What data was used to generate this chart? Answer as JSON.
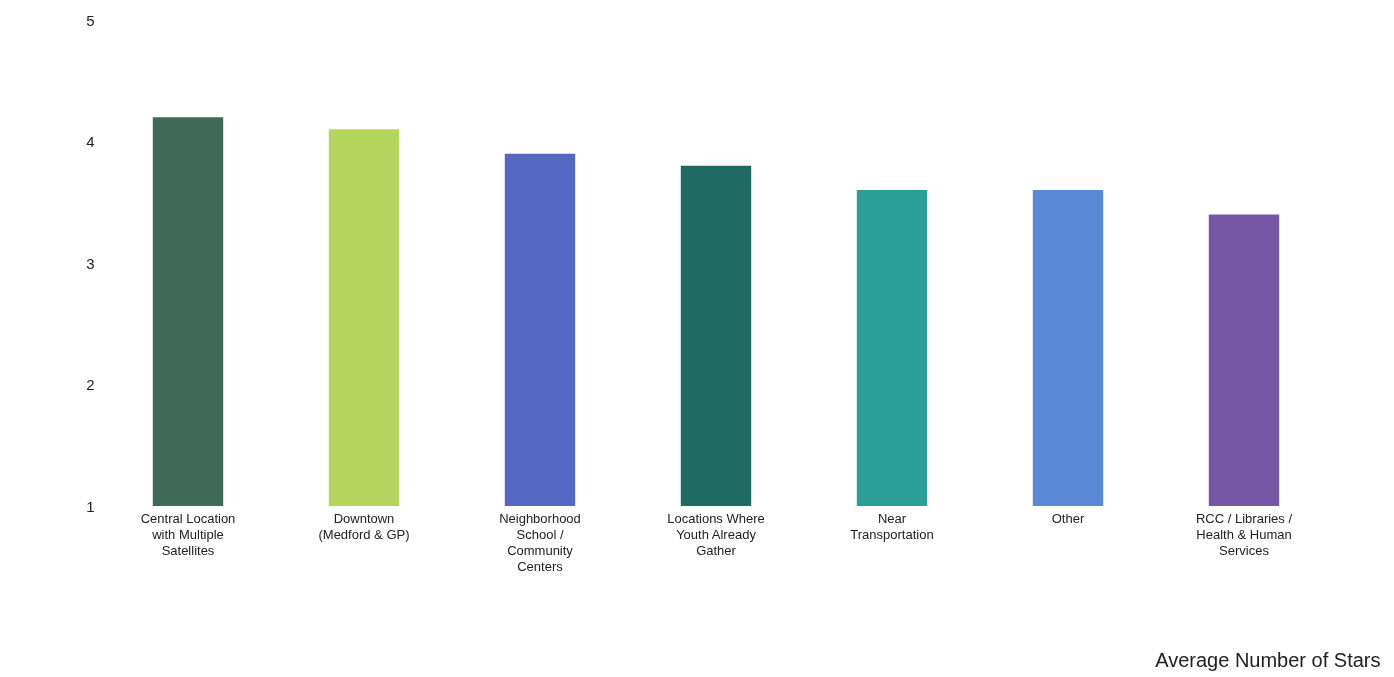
{
  "chart_data": {
    "type": "bar",
    "categories": [
      "Central Location with Multiple Satellites",
      "Downtown (Medford & GP)",
      "Neighborhood School / Community Centers",
      "Locations Where Youth Already Gather",
      "Near Transportation",
      "Other",
      "RCC / Libraries / Health & Human Services"
    ],
    "values": [
      4.2,
      4.1,
      3.9,
      3.8,
      3.6,
      3.6,
      3.4
    ],
    "colors": [
      "#3e6a57",
      "#b6d55c",
      "#5468c4",
      "#1f6b62",
      "#2a9d96",
      "#5a88d5",
      "#7659a6"
    ],
    "ylim": [
      1,
      5
    ],
    "yticks": [
      1,
      2,
      3,
      4,
      5
    ],
    "xlabel": "Average Number of Stars"
  }
}
